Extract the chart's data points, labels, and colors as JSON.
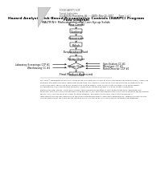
{
  "title_line1": "Hazard Analysis Risk-Based Preventative Controls (HARPC) Program",
  "title_line2": "Flow Diagram",
  "subtitle": "MALTRIN® Maltodextrins and Corn Syrup Solids",
  "header_sop": "FOOD SAFETY SOP",
  "header_company": "Forest Industries",
  "header_info": "LOCATION: Muscatine, IA       DATE: May 15, 2017       Page 1 of 1",
  "box_labels": [
    "Raw Cereal",
    "Cooking",
    "Conversion",
    "Polish",
    "Evaporation/Fluid",
    "Spray Dryer"
  ],
  "left_arrow_labels": [
    "Laboratory Screenings: CCP #1",
    "Warehousing: CC #1"
  ],
  "right_arrow_labels": [
    "Specification: CC #1",
    "Micro/spec: CC #1",
    "Metal Detector: CCP #1"
  ],
  "final_box": "Final Product Approved",
  "footer_text": "MALTRIN® Maltodextrins and Corn Syrup Solids are made exclusively at Grain Processing Corporation (GPC). These are specialty manufactured food ingredients made from corn starch or corn syrup. Maltodextrins are considered to be used in the food industry as fillers, binders and coating agents. Corn Syrup Solids are used in the food industry as sweeteners, fillers and texture modifiers. These products are available in a wide variety of Dextrose Equivalence (DE) values. There are currently three production facilities at GPC where these food ingredients are produced. This SOP covers the manufacturing process of MALTRIN Maltodextrins and Corn Syrup Solids at the Muscatine facility only. This SOP does not apply to other products, processes or facilities. Use of this document is restricted to trained GPC personnel in the manufacturing and quality assurance departments. Additional products may be manufactured at the same facility utilizing similar processes but are controlled by separate flow diagrams.",
  "bg_color": "#ffffff"
}
